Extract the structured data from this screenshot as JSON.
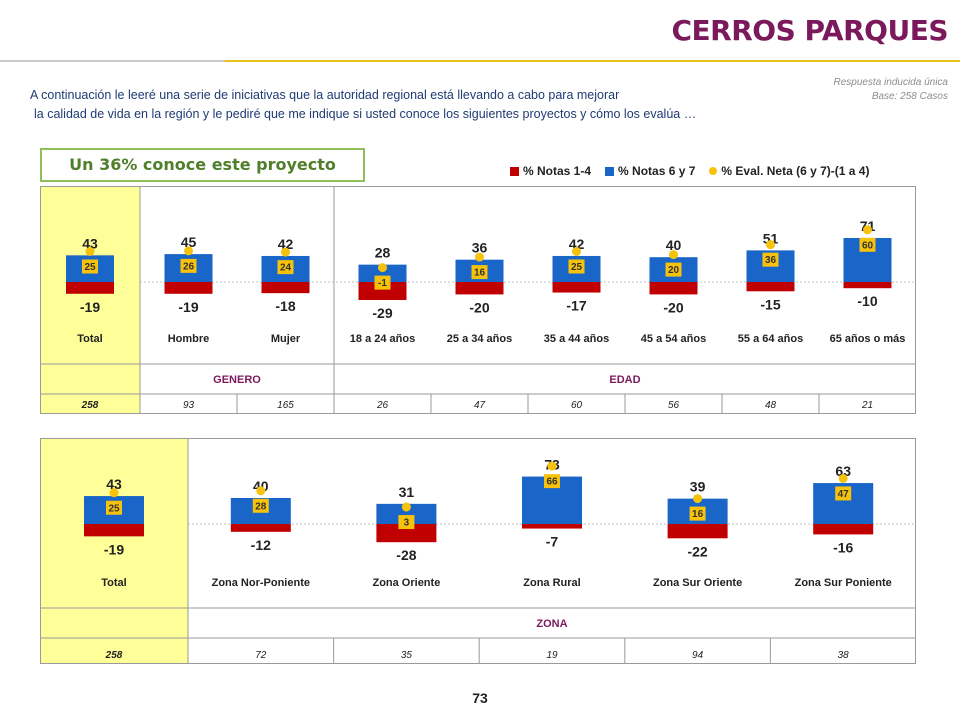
{
  "header": {
    "title": "CERROS PARQUES",
    "meta_line1": "Respuesta inducida única",
    "meta_line2": "Base: 258 Casos",
    "intro_line1": "A continuación le leeré una serie de iniciativas que la autoridad regional está llevando a cabo para mejorar",
    "intro_line2": "la calidad de vida en la región y le pediré que me indique si usted conoce los siguientes proyectos y cómo los evalúa …",
    "headline": "Un 36% conoce este proyecto"
  },
  "legend": {
    "neg_label": "% Notas 1-4",
    "pos_label": "% Notas 6 y 7",
    "net_label": "% Eval. Neta (6 y 7)-(1 a 4)"
  },
  "colors": {
    "pos": "#1a66c8",
    "neg": "#c00000",
    "net": "#f7c20b",
    "highlight": "#ffff99",
    "group": "#7a1a5c"
  },
  "chart_data": [
    {
      "type": "bar",
      "categories": [
        "Total",
        "Hombre",
        "Mujer",
        "18 a 24 años",
        "25 a 34 años",
        "35 a 44 años",
        "45 a 54 años",
        "55 a 64 años",
        "65 años o más"
      ],
      "series": [
        {
          "name": "% Notas 6 y 7",
          "values": [
            43,
            45,
            42,
            28,
            36,
            42,
            40,
            51,
            71
          ]
        },
        {
          "name": "% Notas 1-4",
          "values": [
            -19,
            -19,
            -18,
            -29,
            -20,
            -17,
            -20,
            -15,
            -10
          ]
        },
        {
          "name": "% Eval. Neta (6 y 7)-(1 a 4)",
          "values": [
            25,
            26,
            24,
            -1,
            16,
            25,
            20,
            36,
            60
          ]
        }
      ],
      "groups": [
        {
          "label": "GENERO",
          "span": 2
        },
        {
          "label": "EDAD",
          "span": 6
        }
      ],
      "bases": [
        "258",
        "93",
        "165",
        "26",
        "47",
        "60",
        "56",
        "48",
        "21"
      ]
    },
    {
      "type": "bar",
      "categories": [
        "Total",
        "Zona Nor-Poniente",
        "Zona Oriente",
        "Zona Rural",
        "Zona Sur Oriente",
        "Zona Sur Poniente"
      ],
      "series": [
        {
          "name": "% Notas 6 y 7",
          "values": [
            43,
            40,
            31,
            73,
            39,
            63
          ]
        },
        {
          "name": "% Notas 1-4",
          "values": [
            -19,
            -12,
            -28,
            -7,
            -22,
            -16
          ]
        },
        {
          "name": "% Eval. Neta (6 y 7)-(1 a 4)",
          "values": [
            25,
            28,
            3,
            66,
            16,
            47
          ]
        }
      ],
      "groups": [
        {
          "label": "ZONA",
          "span": 5
        }
      ],
      "bases": [
        "258",
        "72",
        "35",
        "19",
        "94",
        "38"
      ]
    }
  ],
  "footer": {
    "page_number": "73"
  }
}
